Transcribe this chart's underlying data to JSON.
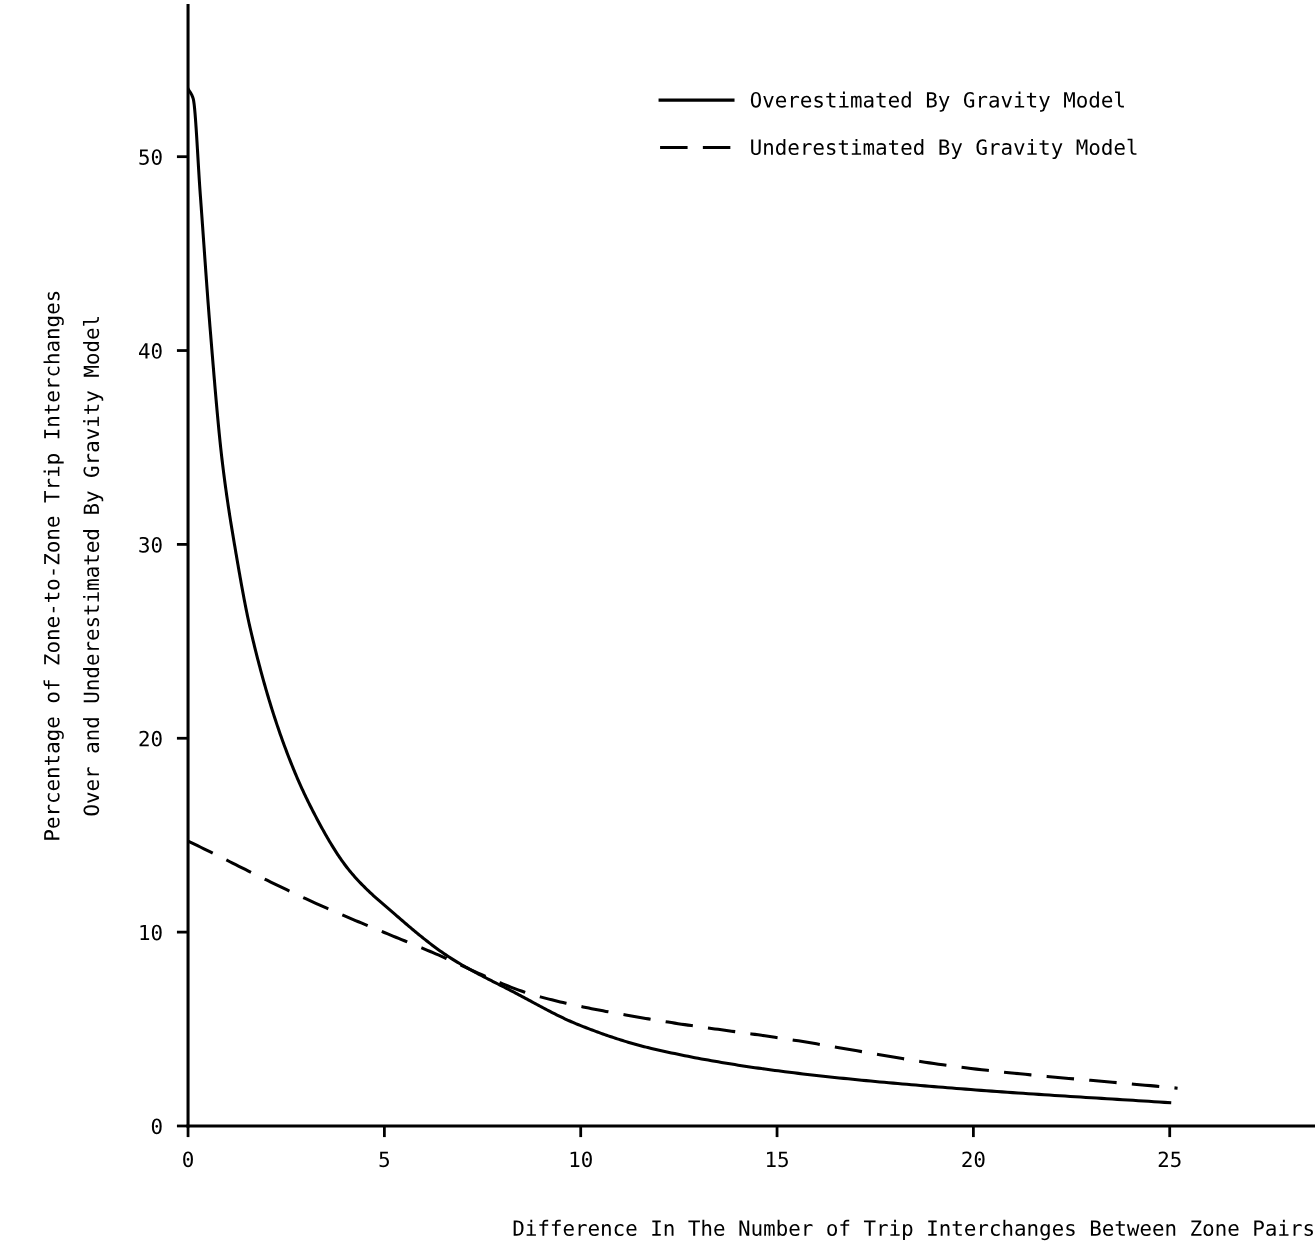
{
  "chart_data": {
    "type": "line",
    "xlabel": "Difference In The Number of Trip Interchanges Between Zone Pairs",
    "ylabel": "Percentage of Zone-to-Zone Trip Interchanges\nOver and Underestimated By Gravity Model",
    "xlim": [
      0,
      28.7
    ],
    "ylim": [
      0,
      57.8
    ],
    "xticks": [
      0,
      5,
      10,
      15,
      20,
      25
    ],
    "yticks": [
      0,
      10,
      20,
      30,
      40,
      50
    ],
    "grid": false,
    "legend": "top right",
    "marker": "none",
    "series": [
      {
        "name": "Overestimated By Gravity Model",
        "color": "#000000",
        "line_style": "solid",
        "x": [
          0,
          0.13,
          0.31,
          0.56,
          0.87,
          1.25,
          1.58,
          2.35,
          3.14,
          4.1,
          5.28,
          6.66,
          8.3,
          9.97,
          11.8,
          15.2,
          19.8,
          25
        ],
        "values": [
          53.5,
          53.0,
          48.1,
          41.2,
          34.3,
          29.2,
          25.7,
          20.2,
          16.4,
          13.2,
          10.9,
          8.7,
          6.9,
          5.2,
          4.0,
          2.8,
          1.9,
          1.2
        ]
      },
      {
        "name": "Underestimated By Gravity Model",
        "color": "#000000",
        "line_style": "dashed",
        "x": [
          0,
          3.24,
          6.17,
          8.9,
          11.8,
          15.2,
          19.8,
          25.2
        ],
        "values": [
          14.7,
          11.5,
          9.0,
          6.7,
          5.5,
          4.5,
          3.0,
          1.95
        ]
      }
    ]
  }
}
